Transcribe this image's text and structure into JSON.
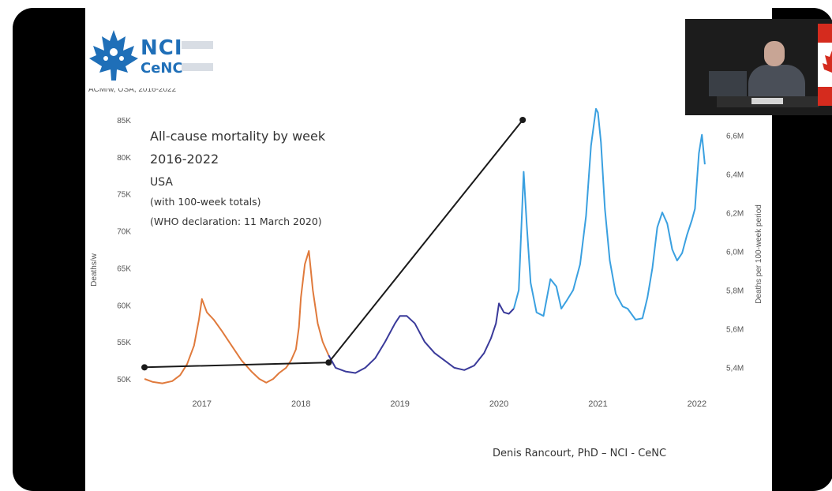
{
  "chart_data": {
    "type": "line",
    "axis_title": "ACM/w, USA, 2016-2022",
    "ylabel": "Deaths/w",
    "y2label": "Deaths per 100-week period",
    "y_ticks": [
      "50K",
      "55K",
      "60K",
      "65K",
      "70K",
      "75K",
      "80K",
      "85K"
    ],
    "y_tick_values": [
      50000,
      55000,
      60000,
      65000,
      70000,
      75000,
      80000,
      85000
    ],
    "ylim": [
      50000,
      85000
    ],
    "y2_ticks": [
      "5,4M",
      "5,6M",
      "5,8M",
      "6,0M",
      "6,2M",
      "6,4M",
      "6,6M"
    ],
    "y2_tick_values": [
      5400000,
      5600000,
      5800000,
      6000000,
      6200000,
      6400000,
      6600000
    ],
    "y2lim": [
      5340000,
      6680000
    ],
    "x_ticks": [
      "2017",
      "2018",
      "2019",
      "2020",
      "2021",
      "2022"
    ],
    "x_tick_values": [
      2017.0,
      2018.0,
      2019.0,
      2020.0,
      2021.0,
      2022.0
    ],
    "xlim": [
      2016.3,
      2022.2
    ],
    "grid": false,
    "series": [
      {
        "color": "#e07a3c",
        "x": [
          2016.42,
          2016.5,
          2016.6,
          2016.7,
          2016.78,
          2016.85,
          2016.92,
          2016.97,
          2017.0,
          2017.05,
          2017.12,
          2017.2,
          2017.3,
          2017.4,
          2017.5,
          2017.58,
          2017.65,
          2017.72,
          2017.78,
          2017.85,
          2017.9,
          2017.95,
          2017.98,
          2018.0,
          2018.04,
          2018.08,
          2018.12,
          2018.17,
          2018.22,
          2018.28
        ],
        "y": [
          50000,
          49600,
          49400,
          49700,
          50500,
          52000,
          54500,
          58000,
          60800,
          59000,
          58000,
          56500,
          54500,
          52500,
          51000,
          50000,
          49500,
          50000,
          50800,
          51500,
          52500,
          54000,
          57000,
          61000,
          65500,
          67300,
          62000,
          57500,
          55000,
          53200
        ]
      },
      {
        "color": "#3a3a9a",
        "x": [
          2018.28,
          2018.35,
          2018.45,
          2018.55,
          2018.65,
          2018.75,
          2018.85,
          2018.95,
          2019.0,
          2019.07,
          2019.15,
          2019.25,
          2019.35,
          2019.45,
          2019.55,
          2019.65,
          2019.75,
          2019.85,
          2019.92,
          2019.97,
          2020.0,
          2020.05,
          2020.1,
          2020.15
        ],
        "y": [
          53200,
          51500,
          51000,
          50800,
          51500,
          52800,
          55000,
          57500,
          58500,
          58500,
          57500,
          55000,
          53500,
          52500,
          51500,
          51200,
          51800,
          53500,
          55500,
          57500,
          60200,
          59000,
          58800,
          59500
        ]
      },
      {
        "color": "#3aa0e0",
        "x": [
          2020.15,
          2020.2,
          2020.25,
          2020.28,
          2020.32,
          2020.38,
          2020.45,
          2020.52,
          2020.58,
          2020.63,
          2020.68,
          2020.75,
          2020.82,
          2020.88,
          2020.93,
          2020.98,
          2021.0,
          2021.03,
          2021.07,
          2021.12,
          2021.18,
          2021.25,
          2021.3,
          2021.38,
          2021.45,
          2021.5,
          2021.55,
          2021.6,
          2021.65,
          2021.7,
          2021.75,
          2021.8,
          2021.85,
          2021.9,
          2021.95,
          2021.98,
          2022.02,
          2022.05,
          2022.08
        ],
        "y": [
          59500,
          62000,
          78000,
          71000,
          63000,
          59000,
          58500,
          63500,
          62500,
          59500,
          60500,
          62000,
          65500,
          72000,
          81500,
          86500,
          86000,
          82000,
          73000,
          66000,
          61500,
          59800,
          59500,
          58000,
          58200,
          61000,
          65000,
          70500,
          72500,
          71000,
          67500,
          66000,
          67000,
          69500,
          71500,
          73000,
          80500,
          83000,
          79000
        ]
      }
    ],
    "annotations": [
      {
        "text": "All-cause mortality by week",
        "size": "large"
      },
      {
        "text": "2016-2022",
        "size": "large"
      },
      {
        "text": "USA",
        "size": "medium"
      },
      {
        "text": "(with 100-week totals)",
        "size": "small"
      },
      {
        "text": "(WHO declaration: 11 March 2020)",
        "size": "small"
      }
    ],
    "totals_line": {
      "color": "#1a1a1a",
      "x": [
        2016.42,
        2018.28,
        2020.24
      ],
      "y2": [
        5400000,
        5425000,
        6680000
      ]
    },
    "credit": "Denis Rancourt, PhD  –  NCI - CeNC"
  },
  "logo": {
    "name": "NCI",
    "sub": "CeNC"
  }
}
